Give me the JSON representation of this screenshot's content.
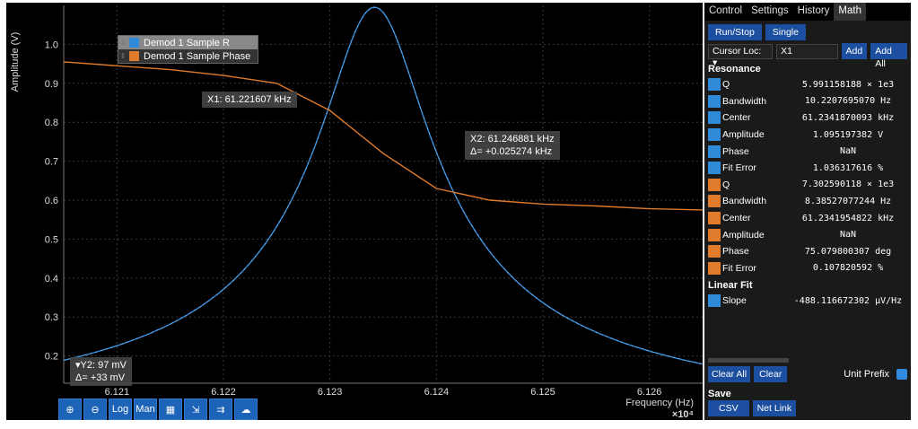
{
  "plot": {
    "y_axis_label": "Amplitude (V)",
    "x_axis_label": "Frequency (Hz)",
    "x_multiplier": "×10⁴",
    "y_ticks": [
      "1.0",
      "0.9",
      "0.8",
      "0.7",
      "0.6",
      "0.5",
      "0.4",
      "0.3",
      "0.2"
    ],
    "x_ticks": [
      "6.121",
      "6.122",
      "6.123",
      "6.124",
      "6.125",
      "6.126"
    ],
    "legend": [
      {
        "label": "Demod 1 Sample R",
        "color": "#2f8ad8"
      },
      {
        "label": "Demod 1 Sample Phase",
        "color": "#e07b2c"
      }
    ],
    "cursor_x1": "X1: 61.221607 kHz",
    "cursor_x2": "X2: 61.246881 kHz",
    "cursor_delta_x": "Δ= +0.025274 kHz",
    "cursor_y2": "▾Y2: 97 mV",
    "cursor_delta_y": "Δ= +33 mV",
    "colors": {
      "r": "#2f8ad8",
      "phase": "#e07b2c"
    }
  },
  "chart_data": {
    "type": "line",
    "x_unit": "Frequency (Hz) ×10⁴",
    "xlim": [
      6.1205,
      6.1265
    ],
    "ylim": [
      0.13,
      1.1
    ],
    "series": [
      {
        "name": "Demod 1 Sample R",
        "resonance": {
          "center_khz": 61.2341870093,
          "amplitude_v": 1.095197382,
          "bandwidth_hz": 10.220769507,
          "q": 5991.158188
        }
      },
      {
        "name": "Demod 1 Sample Phase",
        "x": [
          6.1205,
          6.121,
          6.1215,
          6.122,
          6.1225,
          6.123,
          6.1235,
          6.124,
          6.1245,
          6.125,
          6.1255,
          6.126,
          6.1265
        ],
        "values": [
          0.955,
          0.945,
          0.935,
          0.92,
          0.9,
          0.83,
          0.72,
          0.63,
          0.6,
          0.59,
          0.585,
          0.578,
          0.575
        ]
      }
    ]
  },
  "toolbar": {
    "log_label": "Log",
    "man_label": "Man"
  },
  "panel": {
    "tabs": [
      "Control",
      "Settings",
      "History",
      "Math"
    ],
    "run_stop": "Run/Stop",
    "single": "Single",
    "select_op": "Cursor Loc: ▾",
    "select_target": "X1",
    "add": "Add",
    "add_all": "Add All",
    "resonance_title": "Resonance",
    "resonance": [
      {
        "name": "Q",
        "value": "5.991158188 × 1e3",
        "color": "#2f8ad8"
      },
      {
        "name": "Bandwidth",
        "value": "10.2207695070 Hz",
        "color": "#2f8ad8"
      },
      {
        "name": "Center",
        "value": "61.2341870093 kHz",
        "color": "#2f8ad8"
      },
      {
        "name": "Amplitude",
        "value": "1.095197382 V",
        "color": "#2f8ad8"
      },
      {
        "name": "Phase",
        "value": "NaN",
        "color": "#2f8ad8"
      },
      {
        "name": "Fit Error",
        "value": "1.036317616 %",
        "color": "#2f8ad8"
      },
      {
        "name": "Q",
        "value": "7.302590118 × 1e3",
        "color": "#e07b2c"
      },
      {
        "name": "Bandwidth",
        "value": "8.38527077244 Hz",
        "color": "#e07b2c"
      },
      {
        "name": "Center",
        "value": "61.2341954822 kHz",
        "color": "#e07b2c"
      },
      {
        "name": "Amplitude",
        "value": "NaN",
        "color": "#e07b2c"
      },
      {
        "name": "Phase",
        "value": "75.079800307 deg",
        "color": "#e07b2c"
      },
      {
        "name": "Fit Error",
        "value": "0.107820592 %",
        "color": "#e07b2c"
      }
    ],
    "linear_fit_title": "Linear Fit",
    "linear_fit": [
      {
        "name": "Slope",
        "value": "-488.116672302 µV/Hz",
        "color": "#2f8ad8"
      }
    ],
    "clear_all": "Clear All",
    "clear": "Clear",
    "unit_prefix": "Unit Prefix",
    "save_title": "Save",
    "csv": "CSV",
    "net_link": "Net Link"
  }
}
